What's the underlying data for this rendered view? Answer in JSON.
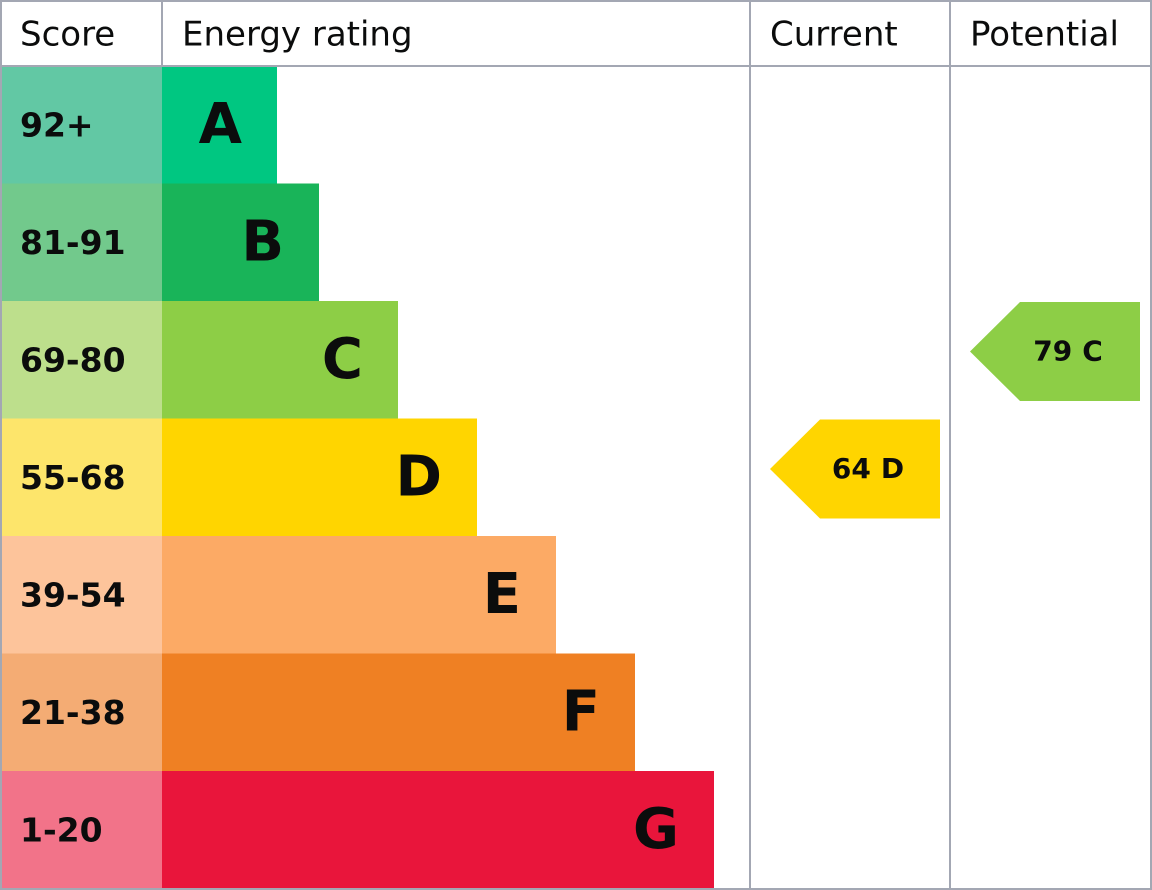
{
  "header": {
    "score": "Score",
    "energy_rating": "Energy rating",
    "current": "Current",
    "potential": "Potential"
  },
  "bands": [
    {
      "score": "92+",
      "rating": "A",
      "color": "#00c781",
      "score_color": "#62c8a4"
    },
    {
      "score": "81-91",
      "rating": "B",
      "color": "#19b459",
      "score_color": "#72c98c"
    },
    {
      "score": "69-80",
      "rating": "C",
      "color": "#8dce46",
      "score_color": "#bddf8c"
    },
    {
      "score": "55-68",
      "rating": "D",
      "color": "#ffd500",
      "score_color": "#fde56b"
    },
    {
      "score": "39-54",
      "rating": "E",
      "color": "#fcaa65",
      "score_color": "#fdc49b"
    },
    {
      "score": "21-38",
      "rating": "F",
      "color": "#ef8023",
      "score_color": "#f4ac74"
    },
    {
      "score": "1-20",
      "rating": "G",
      "color": "#e9153b",
      "score_color": "#f27389"
    }
  ],
  "current": {
    "score": 64,
    "rating": "D"
  },
  "potential": {
    "score": 79,
    "rating": "C"
  }
}
